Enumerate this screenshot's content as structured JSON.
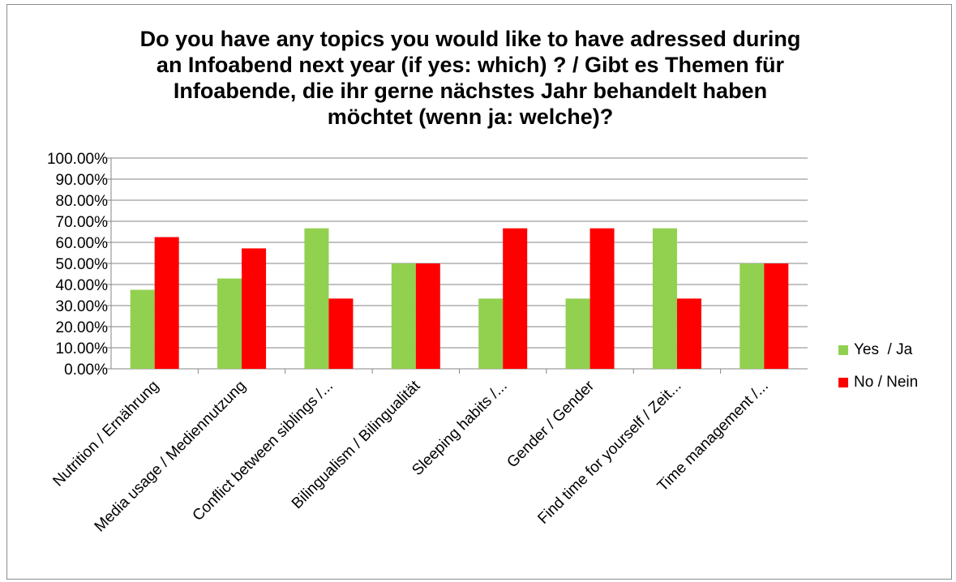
{
  "chart_data": {
    "type": "bar",
    "title": "Do you have any topics you would like to have adressed during\nan Infoabend next year (if yes: which) ? / Gibt es Themen für\nInfoabende, die ihr gerne nächstes Jahr behandelt haben\nmöchtet (wenn ja: welche)?",
    "categories": [
      "Nutrition / Ernährung",
      "Media usage / Mediennutzung",
      "Conflict between siblings /...",
      "Bilingualism / Bilingualität",
      "Sleeping habits /...",
      "Gender / Gender",
      "Find time for yourself / Zeit...",
      "Time management /..."
    ],
    "series": [
      {
        "name": "Yes  / Ja",
        "color": "#92d050",
        "values": [
          37.5,
          42.86,
          66.67,
          50.0,
          33.33,
          33.33,
          66.67,
          50.0
        ]
      },
      {
        "name": "No / Nein",
        "color": "#ff0000",
        "values": [
          62.5,
          57.14,
          33.33,
          50.0,
          66.67,
          66.67,
          33.33,
          50.0
        ]
      }
    ],
    "ylim": [
      0,
      100
    ],
    "yticks": [
      "0.00%",
      "10.00%",
      "20.00%",
      "30.00%",
      "40.00%",
      "50.00%",
      "60.00%",
      "70.00%",
      "80.00%",
      "90.00%",
      "100.00%"
    ],
    "grid": true,
    "legend_position": "right"
  }
}
